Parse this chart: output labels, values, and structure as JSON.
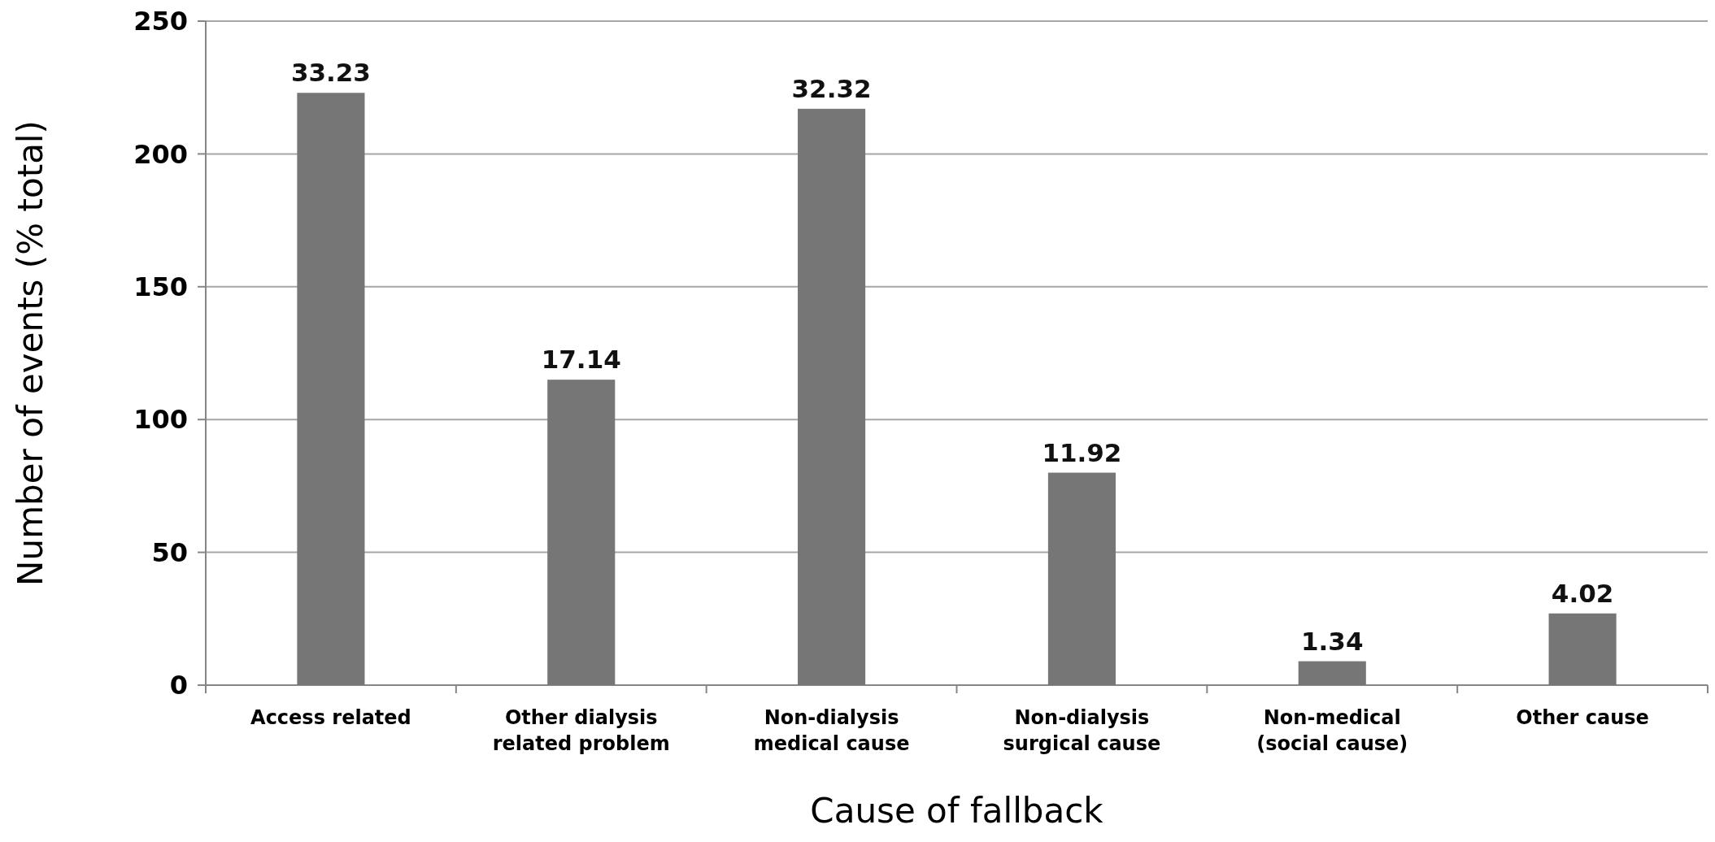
{
  "chart_data": {
    "type": "bar",
    "xlabel": "Cause of fallback",
    "ylabel": "Number of events (% total)",
    "categories": [
      "Access related",
      "Other dialysis related problem",
      "Non-dialysis medical cause",
      "Non-dialysis surgical cause",
      "Non-medical (social cause)",
      "Other cause"
    ],
    "values": [
      223,
      115,
      217,
      80,
      9,
      27
    ],
    "annotations": [
      {
        "text": "33.23",
        "x": "Access related",
        "y": 223
      },
      {
        "text": "17.14",
        "x": "Other dialysis related problem",
        "y": 115
      },
      {
        "text": "32.32",
        "x": "Non-dialysis medical cause",
        "y": 217
      },
      {
        "text": "11.92",
        "x": "Non-dialysis surgical cause",
        "y": 80
      },
      {
        "text": "1.34",
        "x": "Non-medical (social cause)",
        "y": 9
      },
      {
        "text": "4.02",
        "x": "Other cause",
        "y": 27
      }
    ],
    "color": "#767676",
    "ylim": [
      0,
      250
    ],
    "yticks": [
      0,
      50,
      100,
      150,
      200,
      250
    ],
    "grid": "y"
  }
}
